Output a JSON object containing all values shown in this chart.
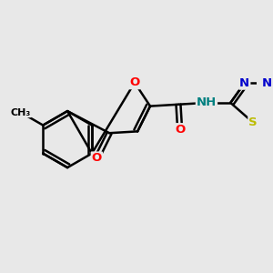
{
  "background_color": "#e8e8e8",
  "bond_color": "#000000",
  "bond_width": 1.8,
  "atom_colors": {
    "O": "#ff0000",
    "N": "#0000cc",
    "S": "#bbbb00",
    "C": "#000000",
    "H": "#008080"
  },
  "font_size": 9.5,
  "figsize": [
    3.0,
    3.0
  ],
  "dpi": 100
}
